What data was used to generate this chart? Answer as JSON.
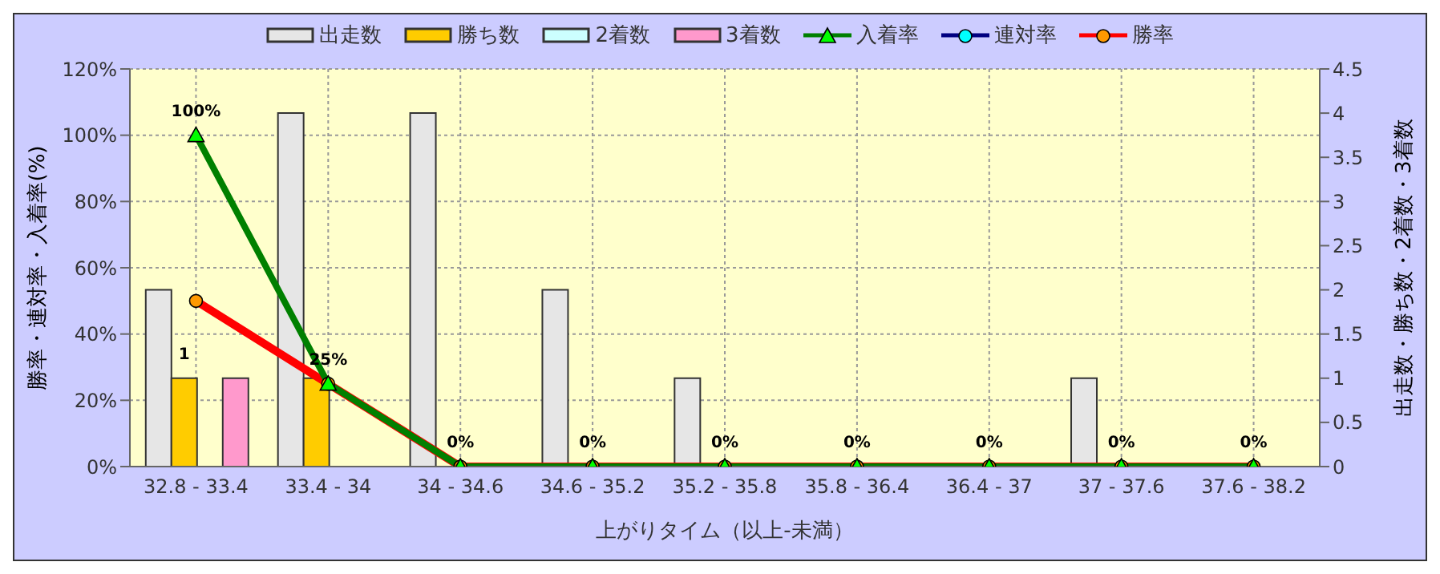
{
  "chart_data": {
    "type": "bar",
    "xlabel": "上がりタイム（以上-未満）",
    "ylabel": "勝率・連対率・入着率(%)",
    "y2label": "出走数・勝ち数・2着数・3着数",
    "categories": [
      "32.8 - 33.4",
      "33.4 - 34",
      "34 - 34.6",
      "34.6 - 35.2",
      "35.2 - 35.8",
      "35.8 - 36.4",
      "36.4 - 37",
      "37 - 37.6",
      "37.6 - 38.2"
    ],
    "series": [
      {
        "name": "出走数",
        "axis": "y2",
        "color": "#e6e6e6",
        "values": [
          2,
          4,
          4,
          2,
          1,
          0,
          0,
          1,
          0
        ]
      },
      {
        "name": "勝ち数",
        "axis": "y2",
        "color": "#ffcc00",
        "values": [
          1,
          1,
          0,
          0,
          0,
          0,
          0,
          0,
          0
        ],
        "value_labels": [
          "1",
          null,
          null,
          null,
          null,
          null,
          null,
          null,
          null
        ]
      },
      {
        "name": "2着数",
        "axis": "y2",
        "color": "#ccffff",
        "values": [
          0,
          0,
          0,
          0,
          0,
          0,
          0,
          0,
          0
        ]
      },
      {
        "name": "3着数",
        "axis": "y2",
        "color": "#ff99cc",
        "values": [
          1,
          0,
          0,
          0,
          0,
          0,
          0,
          0,
          0
        ]
      },
      {
        "name": "入着率",
        "type": "line",
        "color": "#008000",
        "marker": "triangle",
        "values": [
          100,
          25,
          0,
          0,
          0,
          0,
          0,
          0,
          0
        ],
        "value_labels": [
          "100%",
          "25%",
          "0%",
          "0%",
          "0%",
          "0%",
          "0%",
          "0%",
          "0%"
        ]
      },
      {
        "name": "連対率",
        "type": "line",
        "color": "#000080",
        "marker": "circle",
        "values": [
          null,
          null,
          null,
          null,
          null,
          null,
          null,
          null,
          null
        ]
      },
      {
        "name": "勝率",
        "type": "line",
        "color": "#ff0000",
        "marker": "circle",
        "values": [
          50,
          25,
          0,
          0,
          0,
          0,
          0,
          0,
          0
        ]
      }
    ],
    "ylim": [
      0,
      120
    ],
    "yticks": [
      {
        "value": 0,
        "label": "0%"
      },
      {
        "value": 20,
        "label": "20%"
      },
      {
        "value": 40,
        "label": "40%"
      },
      {
        "value": 60,
        "label": "60%"
      },
      {
        "value": 80,
        "label": "80%"
      },
      {
        "value": 100,
        "label": "100%"
      },
      {
        "value": 120,
        "label": "120%"
      }
    ],
    "y2lim": [
      0,
      4.5
    ],
    "y2ticks": [
      0,
      0.5,
      1,
      1.5,
      2,
      2.5,
      3,
      3.5,
      4,
      4.5
    ],
    "grid": true,
    "legend": "top"
  }
}
